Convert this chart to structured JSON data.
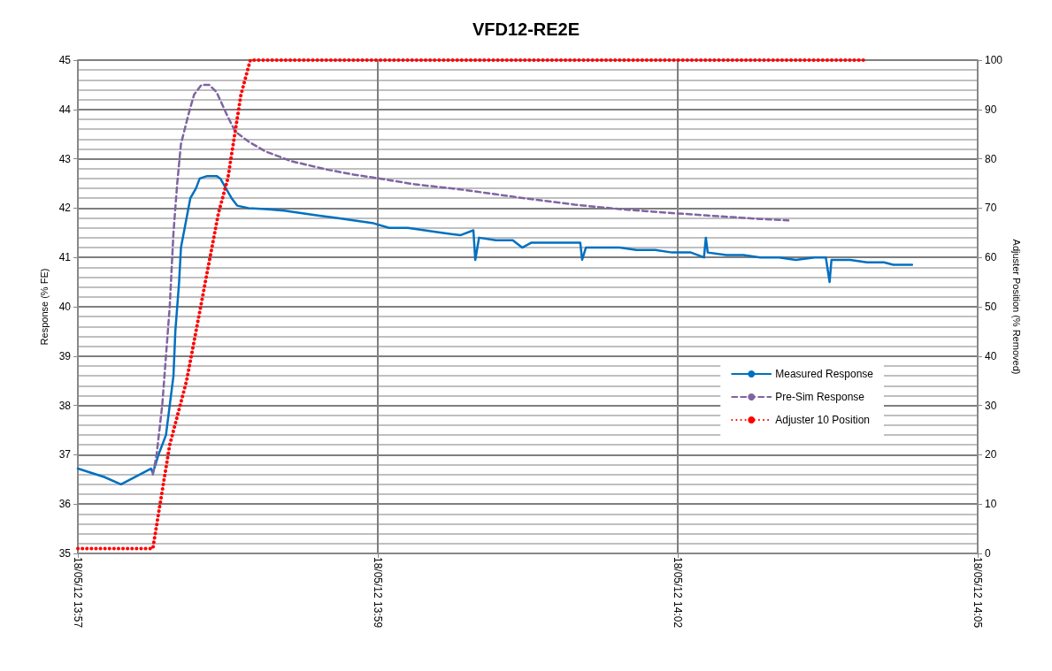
{
  "chart_data": {
    "type": "line",
    "title": "VFD12-RE2E",
    "ylabel": "Response (% FE)",
    "y2label": "Adjuster Position (% Removed)",
    "xlim": [
      "--05-18T13:57:00",
      "--05-18T14:05:00"
    ],
    "xticks": [
      {
        "value": "--05-18T13:57:00",
        "label": "18/05/12 13:57"
      },
      {
        "value": "--05-18T13:59:40",
        "label": "18/05/12 13:59"
      },
      {
        "value": "--05-18T14:02:20",
        "label": "18/05/12 14:02"
      },
      {
        "value": "--05-18T14:05:00",
        "label": "18/05/12 14:05"
      }
    ],
    "ylim": [
      35,
      45
    ],
    "yticks": [
      35,
      36,
      37,
      38,
      39,
      40,
      41,
      42,
      43,
      44,
      45
    ],
    "y2lim": [
      0,
      100
    ],
    "y2ticks": [
      0,
      10,
      20,
      30,
      40,
      50,
      60,
      70,
      80,
      90,
      100
    ],
    "grid": true,
    "legend": "bottom right",
    "marker": "none",
    "series": [
      {
        "name": "Measured Response",
        "color": "#0070c0",
        "line_style": "solid",
        "x": [
          "--05-18T13:57:00",
          "--05-18T13:57:14",
          "--05-18T13:57:23",
          "--05-18T13:57:39",
          "--05-18T13:57:40",
          "--05-18T13:57:43",
          "--05-18T13:57:47",
          "--05-18T13:57:51",
          "--05-18T13:57:52",
          "--05-18T13:57:54",
          "--05-18T13:57:55",
          "--05-18T13:57:58",
          "--05-18T13:58:00",
          "--05-18T13:58:03",
          "--05-18T13:58:05",
          "--05-18T13:58:09",
          "--05-18T13:58:14",
          "--05-18T13:58:16",
          "--05-18T13:58:19",
          "--05-18T13:58:22",
          "--05-18T13:58:25",
          "--05-18T13:58:31",
          "--05-18T13:58:40",
          "--05-18T13:58:50",
          "--05-18T13:58:59",
          "--05-18T13:59:08",
          "--05-18T13:59:18",
          "--05-18T13:59:27",
          "--05-18T13:59:37",
          "--05-18T13:59:46",
          "--05-18T13:59:56",
          "--05-18T14:00:05",
          "--05-18T14:00:14",
          "--05-18T14:00:24",
          "--05-18T14:00:31",
          "--05-18T14:00:32",
          "--05-18T14:00:34",
          "--05-18T14:00:43",
          "--05-18T14:00:52",
          "--05-18T14:00:57",
          "--05-18T14:01:02",
          "--05-18T14:01:11",
          "--05-18T14:01:21",
          "--05-18T14:01:28",
          "--05-18T14:01:29",
          "--05-18T14:01:31",
          "--05-18T14:01:39",
          "--05-18T14:01:49",
          "--05-18T14:01:58",
          "--05-18T14:02:08",
          "--05-18T14:02:17",
          "--05-18T14:02:27",
          "--05-18T14:02:34",
          "--05-18T14:02:35",
          "--05-18T14:02:36",
          "--05-18T14:02:46",
          "--05-18T14:02:55",
          "--05-18T14:03:04",
          "--05-18T14:03:14",
          "--05-18T14:03:23",
          "--05-18T14:03:33",
          "--05-18T14:03:39",
          "--05-18T14:03:41",
          "--05-18T14:03:42",
          "--05-18T14:03:52",
          "--05-18T14:04:01",
          "--05-18T14:04:10",
          "--05-18T14:04:15",
          "--05-18T14:04:25"
        ],
        "values": [
          36.72,
          36.55,
          36.4,
          36.72,
          36.63,
          37.0,
          37.4,
          38.6,
          39.5,
          40.5,
          41.2,
          41.8,
          42.2,
          42.4,
          42.6,
          42.65,
          42.65,
          42.6,
          42.4,
          42.2,
          42.05,
          42.0,
          41.98,
          41.95,
          41.9,
          41.85,
          41.8,
          41.75,
          41.7,
          41.6,
          41.6,
          41.55,
          41.5,
          41.45,
          41.55,
          40.95,
          41.4,
          41.35,
          41.35,
          41.2,
          41.3,
          41.3,
          41.3,
          41.3,
          40.95,
          41.2,
          41.2,
          41.2,
          41.15,
          41.15,
          41.1,
          41.1,
          41.0,
          41.4,
          41.1,
          41.05,
          41.05,
          41.0,
          41.0,
          40.95,
          41.0,
          41.0,
          40.5,
          40.95,
          40.95,
          40.9,
          40.9,
          40.85,
          40.85
        ]
      },
      {
        "name": "Pre-Sim Response",
        "color": "#8064a2",
        "line_style": "dashed",
        "x": [
          "--05-18T13:57:40",
          "--05-18T13:57:42",
          "--05-18T13:57:45",
          "--05-18T13:57:47",
          "--05-18T13:57:49",
          "--05-18T13:57:51",
          "--05-18T13:57:53",
          "--05-18T13:57:55",
          "--05-18T13:57:59",
          "--05-18T13:58:02",
          "--05-18T13:58:06",
          "--05-18T13:58:10",
          "--05-18T13:58:14",
          "--05-18T13:58:17",
          "--05-18T13:58:20",
          "--05-18T13:58:24",
          "--05-18T13:58:31",
          "--05-18T13:58:40",
          "--05-18T13:58:54",
          "--05-18T13:59:13",
          "--05-18T13:59:27",
          "--05-18T13:59:41",
          "--05-18T14:00:00",
          "--05-18T14:00:24",
          "--05-18T14:00:43",
          "--05-18T14:01:02",
          "--05-18T14:01:25",
          "--05-18T14:01:49",
          "--05-18T14:02:17",
          "--05-18T14:02:36",
          "--05-18T14:03:04",
          "--05-18T14:03:19"
        ],
        "values": [
          36.6,
          37.0,
          38.0,
          39.0,
          40.0,
          41.5,
          42.5,
          43.3,
          43.9,
          44.3,
          44.5,
          44.5,
          44.35,
          44.1,
          43.85,
          43.55,
          43.35,
          43.15,
          42.95,
          42.78,
          42.68,
          42.6,
          42.48,
          42.38,
          42.28,
          42.18,
          42.07,
          41.98,
          41.9,
          41.85,
          41.78,
          41.75
        ]
      },
      {
        "name": "Adjuster 10 Position",
        "color": "#ff0000",
        "line_style": "dotted",
        "axis": "y2",
        "x": [
          "--05-18T13:57:00",
          "--05-18T13:57:40",
          "--05-18T13:57:43",
          "--05-18T13:57:49",
          "--05-18T13:57:58",
          "--05-18T13:58:06",
          "--05-18T13:58:15",
          "--05-18T13:58:20",
          "--05-18T13:58:27",
          "--05-18T13:58:32",
          "--05-18T14:03:59"
        ],
        "values": [
          1,
          1,
          8,
          22,
          35,
          51,
          69,
          76,
          93,
          100,
          100
        ]
      }
    ]
  }
}
